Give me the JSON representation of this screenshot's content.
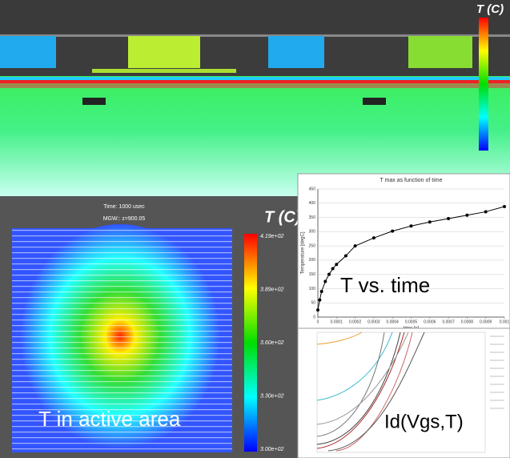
{
  "cross_section": {
    "colorbar_title": "T (C)"
  },
  "active_area": {
    "time": "Time: 1000 usec",
    "plane": "MGW:: z=900.05",
    "colorbar_title": "T (C)",
    "colorbar_labels": [
      "4.19e+02",
      "3.89e+02",
      "3.60e+02",
      "3.30e+02",
      "3.00e+02"
    ],
    "caption": "T in active area"
  },
  "chart_data": {
    "type": "line",
    "title": "T max as function of time",
    "x_label": "time [s]",
    "y_label": "Temperature [degC]",
    "x": [
      0,
      1e-05,
      2e-05,
      4e-05,
      6e-05,
      8e-05,
      0.0001,
      0.00015,
      0.0002,
      0.0003,
      0.0004,
      0.0005,
      0.0006,
      0.0007,
      0.0008,
      0.0009,
      0.001
    ],
    "series": [
      {
        "color": "#000000",
        "values": [
          25,
          60,
          90,
          125,
          150,
          170,
          185,
          215,
          250,
          278,
          302,
          320,
          334,
          346,
          358,
          370,
          388
        ]
      }
    ],
    "xlim": [
      0,
      0.001
    ],
    "xticks": [
      0,
      0.0001,
      0.0002,
      0.0003,
      0.0004,
      0.0005,
      0.0006,
      0.0007,
      0.0008,
      0.0009,
      0.001
    ],
    "ylim": [
      0,
      450
    ],
    "yticks": [
      0,
      50,
      100,
      150,
      200,
      250,
      300,
      350,
      400,
      450
    ],
    "grid": true,
    "caption": "T vs. time"
  },
  "id_chart": {
    "caption": "Id(Vgs,T)"
  }
}
